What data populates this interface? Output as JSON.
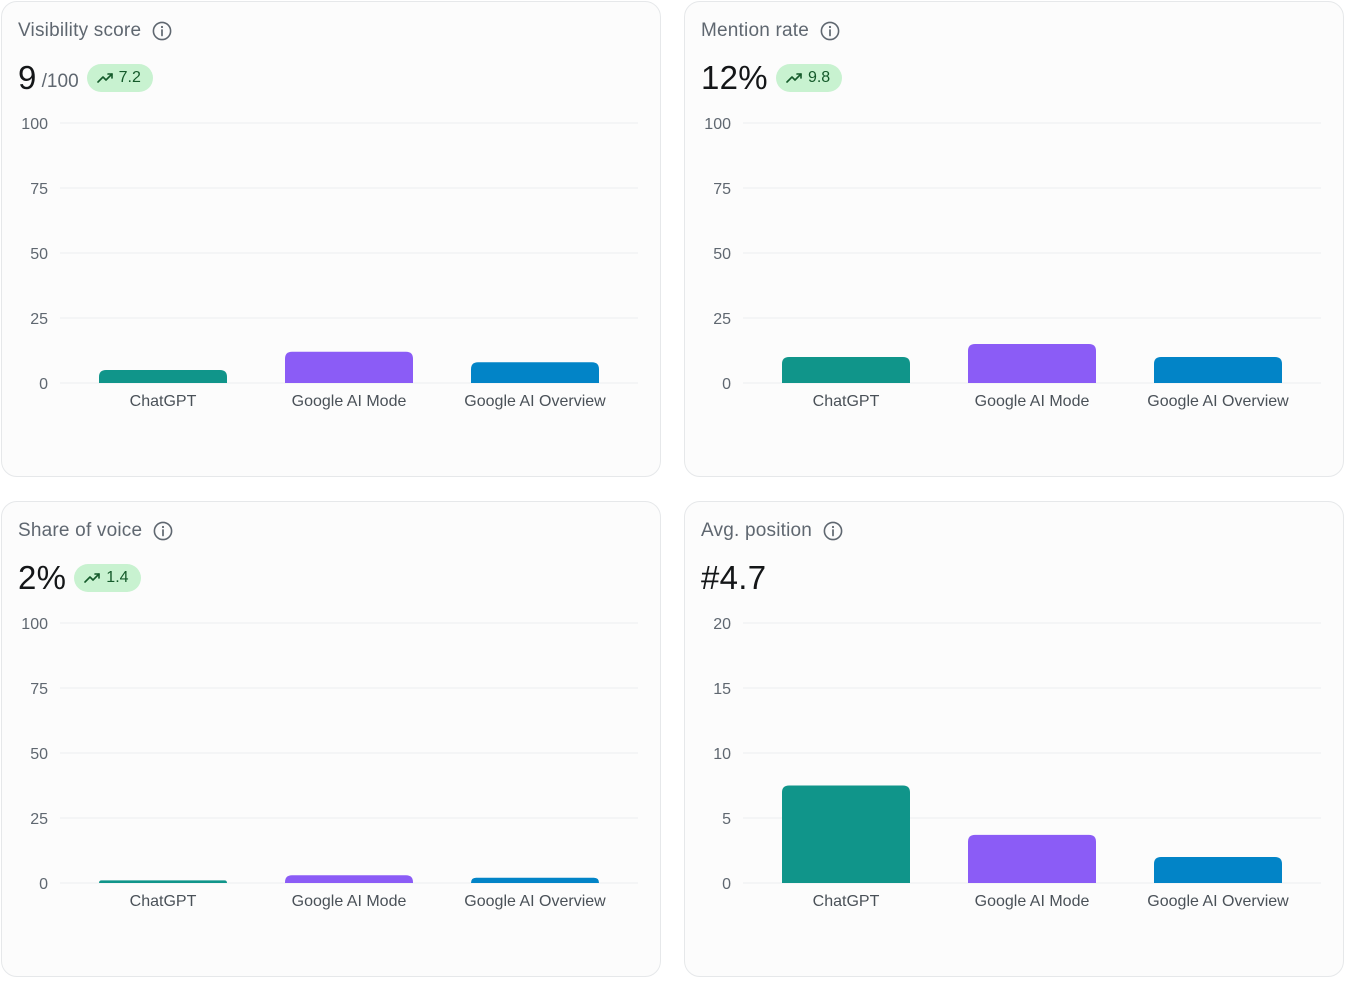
{
  "cards": [
    {
      "title": "Visibility score",
      "value": "9",
      "suffix": "/100",
      "badge": "7.2",
      "icon": "info-icon",
      "chart_data": {
        "type": "bar",
        "categories": [
          "ChatGPT",
          "Google AI Mode",
          "Google AI Overview"
        ],
        "values": [
          5,
          12,
          8
        ],
        "y_ticks": [
          0,
          25,
          50,
          75,
          100
        ],
        "ylim": [
          0,
          100
        ],
        "colors": [
          "#10958a",
          "#8b5cf6",
          "#0284c7"
        ]
      }
    },
    {
      "title": "Mention rate",
      "value": "12%",
      "suffix": "",
      "badge": "9.8",
      "icon": "info-icon",
      "chart_data": {
        "type": "bar",
        "categories": [
          "ChatGPT",
          "Google AI Mode",
          "Google AI Overview"
        ],
        "values": [
          10,
          15,
          10
        ],
        "y_ticks": [
          0,
          25,
          50,
          75,
          100
        ],
        "ylim": [
          0,
          100
        ],
        "colors": [
          "#10958a",
          "#8b5cf6",
          "#0284c7"
        ]
      }
    },
    {
      "title": "Share of voice",
      "value": "2%",
      "suffix": "",
      "badge": "1.4",
      "icon": "info-icon",
      "chart_data": {
        "type": "bar",
        "categories": [
          "ChatGPT",
          "Google AI Mode",
          "Google AI Overview"
        ],
        "values": [
          1,
          3,
          2
        ],
        "y_ticks": [
          0,
          25,
          50,
          75,
          100
        ],
        "ylim": [
          0,
          100
        ],
        "colors": [
          "#10958a",
          "#8b5cf6",
          "#0284c7"
        ]
      }
    },
    {
      "title": "Avg. position",
      "value": "#4.7",
      "suffix": "",
      "badge": "",
      "icon": "info-icon",
      "chart_data": {
        "type": "bar",
        "categories": [
          "ChatGPT",
          "Google AI Mode",
          "Google AI Overview"
        ],
        "values": [
          7.5,
          3.7,
          2
        ],
        "y_ticks": [
          0,
          5,
          10,
          15,
          20
        ],
        "ylim": [
          0,
          20
        ],
        "colors": [
          "#10958a",
          "#8b5cf6",
          "#0284c7"
        ]
      }
    }
  ]
}
